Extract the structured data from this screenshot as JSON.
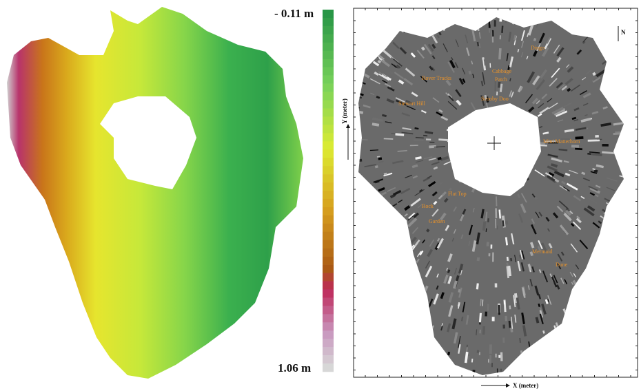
{
  "colorbar": {
    "top_label": "- 0.11 m",
    "bottom_label": "1.06 m"
  },
  "map": {
    "y_axis_label": "Y (meter)",
    "x_axis_label": "X (meter)",
    "north_label": "N",
    "features": [
      {
        "lines": [
          "Dingo"
        ]
      },
      {
        "lines": [
          "Rover Tracks"
        ]
      },
      {
        "lines": [
          "Cabbage",
          "Patch"
        ]
      },
      {
        "lines": [
          "Scooby Doo"
        ]
      },
      {
        "lines": [
          "Stewart Hill"
        ]
      },
      {
        "lines": [
          "Mini Matterhorn"
        ]
      },
      {
        "lines": [
          "Flat Top"
        ]
      },
      {
        "lines": [
          "Rock",
          "Garden"
        ]
      },
      {
        "lines": [
          "Mermaid",
          "Dune"
        ]
      }
    ]
  }
}
